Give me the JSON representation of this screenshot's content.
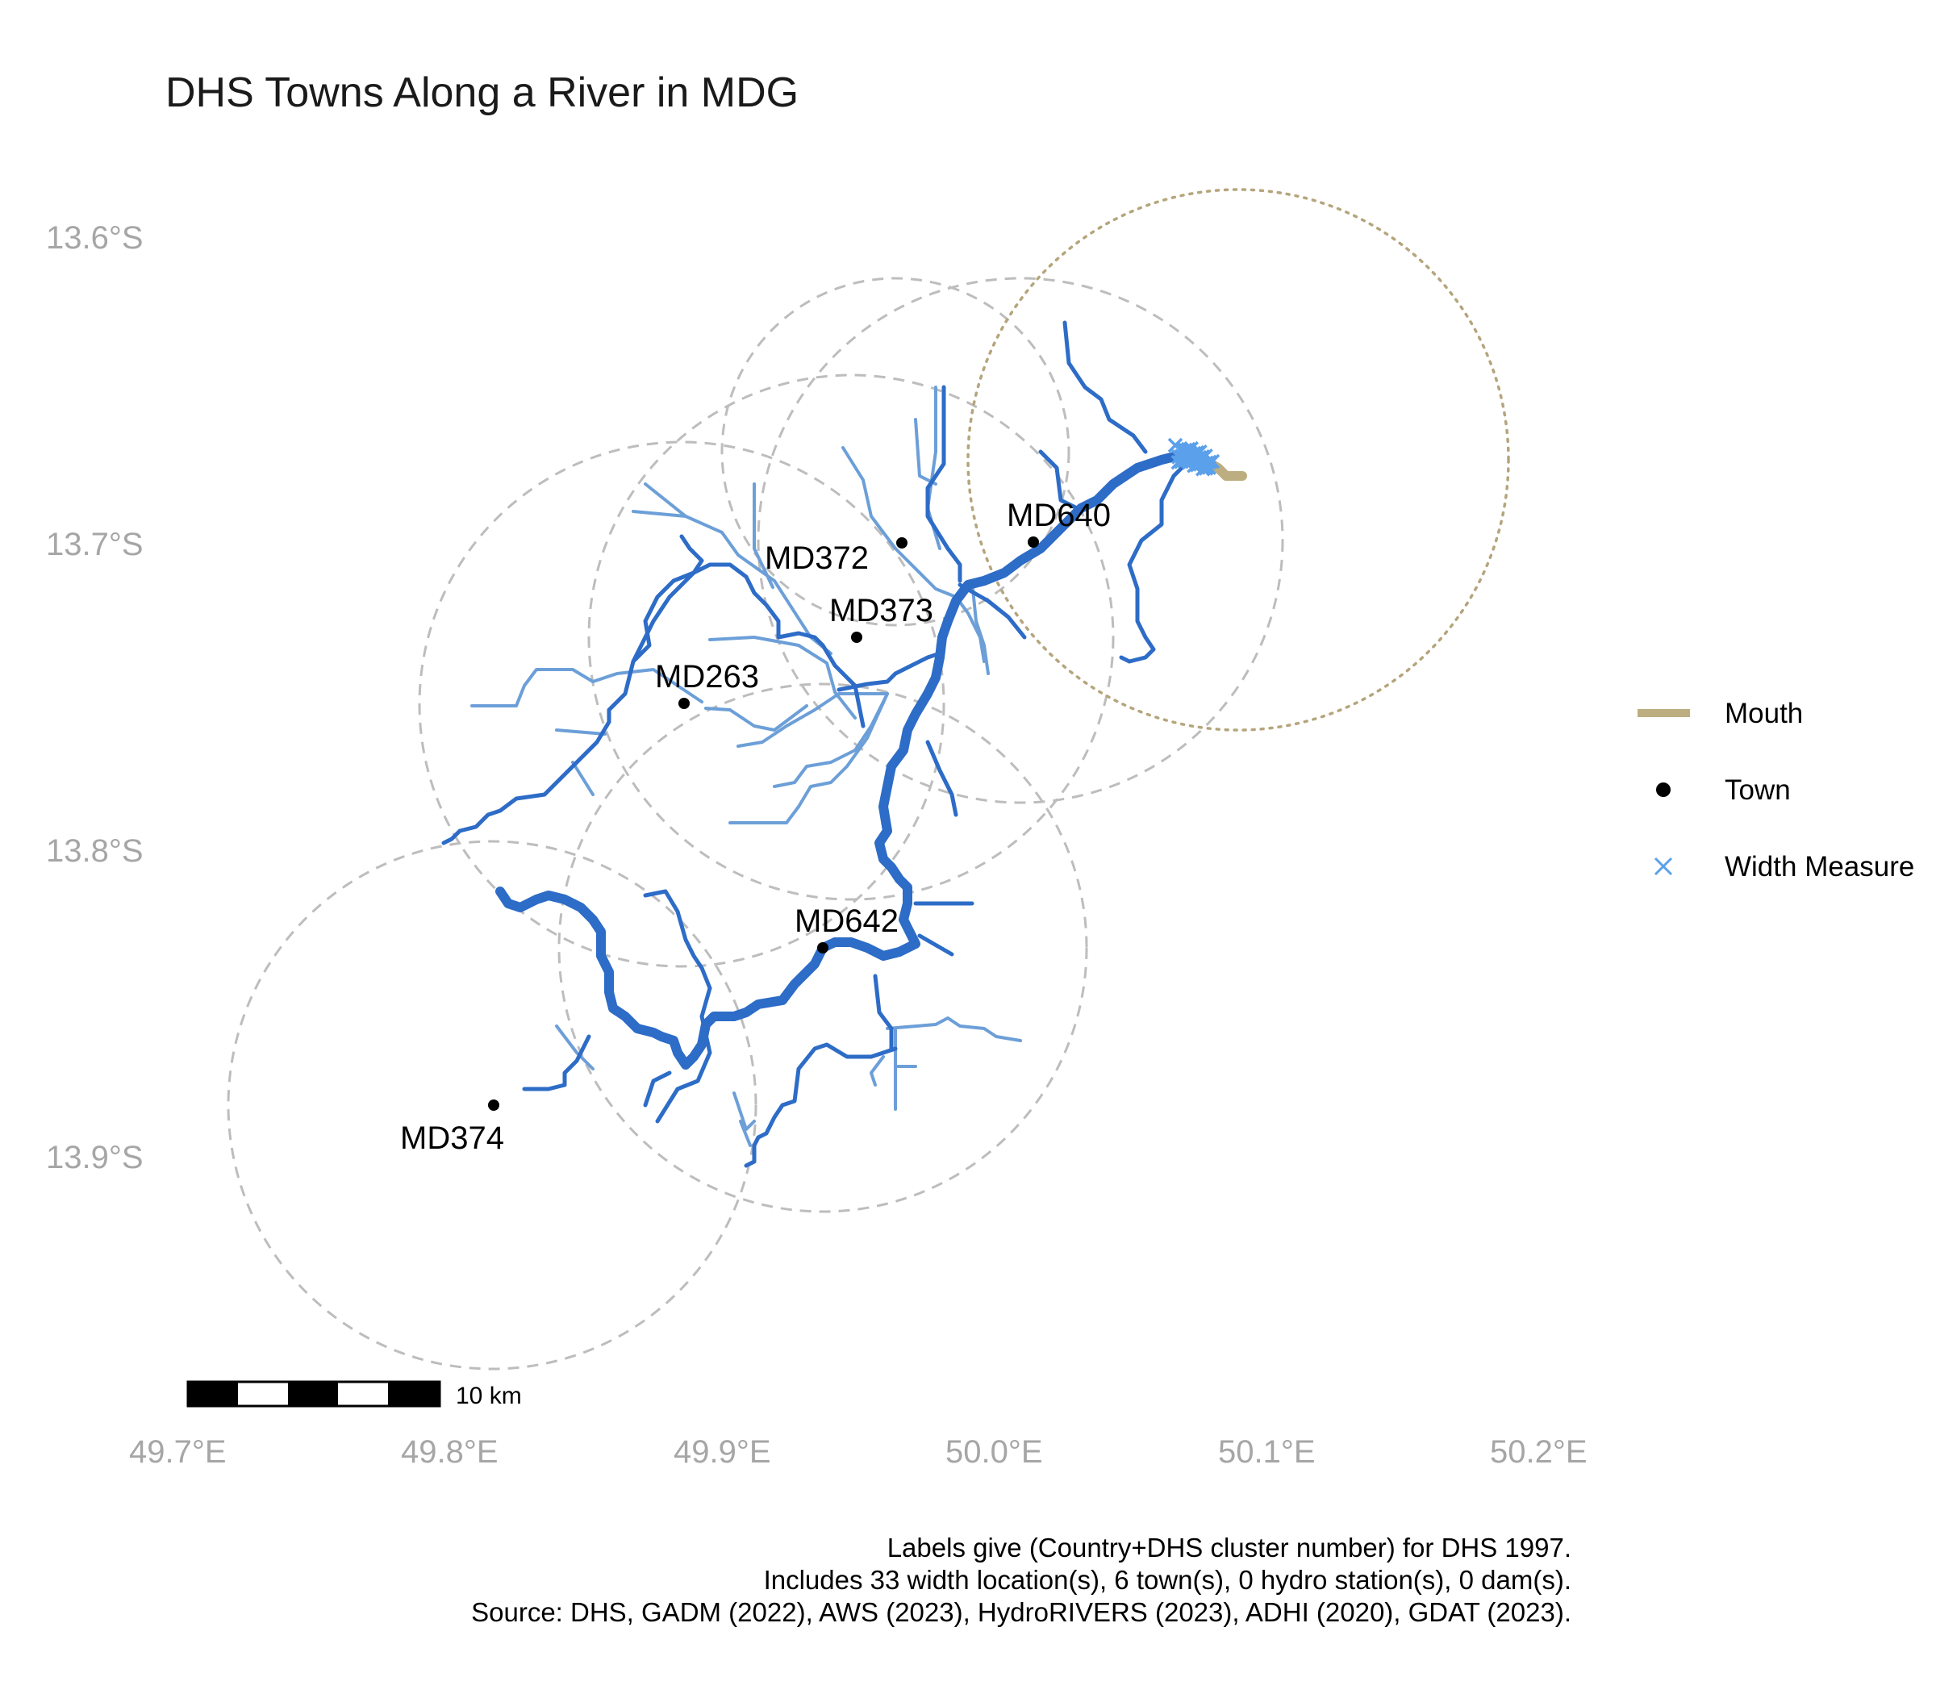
{
  "title": "DHS Towns Along a River in MDG",
  "chart_data": {
    "type": "map",
    "x_axis": {
      "ticks": [
        "49.7°E",
        "49.8°E",
        "49.9°E",
        "50.0°E",
        "50.1°E",
        "50.2°E"
      ],
      "range": [
        49.7,
        50.2
      ]
    },
    "y_axis": {
      "ticks": [
        "13.6°S",
        "13.7°S",
        "13.8°S",
        "13.9°S"
      ],
      "range": [
        13.6,
        13.9
      ]
    },
    "towns": [
      {
        "label": "MD640",
        "lon": 50.01,
        "lat": -13.7
      },
      {
        "label": "MD372",
        "lon": 49.96,
        "lat": -13.7
      },
      {
        "label": "MD373",
        "lon": 49.95,
        "lat": -13.73
      },
      {
        "label": "MD263",
        "lon": 49.88,
        "lat": -13.75
      },
      {
        "label": "MD642",
        "lon": 49.93,
        "lat": -13.83
      },
      {
        "label": "MD374",
        "lon": 49.81,
        "lat": -13.88
      }
    ],
    "width_measure_count": 33,
    "mouth": {
      "lon": 50.08,
      "lat": -13.67
    },
    "legend": {
      "position": "right",
      "entries": [
        {
          "label": "Mouth",
          "symbol": "thick-line",
          "color": "#bcae80"
        },
        {
          "label": "Town",
          "symbol": "dot",
          "color": "#000000"
        },
        {
          "label": "Width Measure",
          "symbol": "x-mark",
          "color": "#5aa0ea"
        }
      ]
    },
    "scale_bar": {
      "label": "10 km"
    },
    "grid": false
  },
  "caption": [
    "Labels give (Country+DHS cluster number) for DHS 1997.",
    "Includes 33 width location(s), 6 town(s), 0 hydro station(s), 0 dam(s).",
    "Source: DHS, GADM (2022), AWS (2023), HydroRIVERS (2023), ADHI (2020), GDAT (2023)."
  ],
  "colors": {
    "river_main": "#2d6cc7",
    "river_minor": "#6c9fd8",
    "buffer": "#bdbdbd",
    "mouth": "#bcae80",
    "width_measure": "#5aa0ea",
    "axis_text": "#a6a6a6"
  }
}
